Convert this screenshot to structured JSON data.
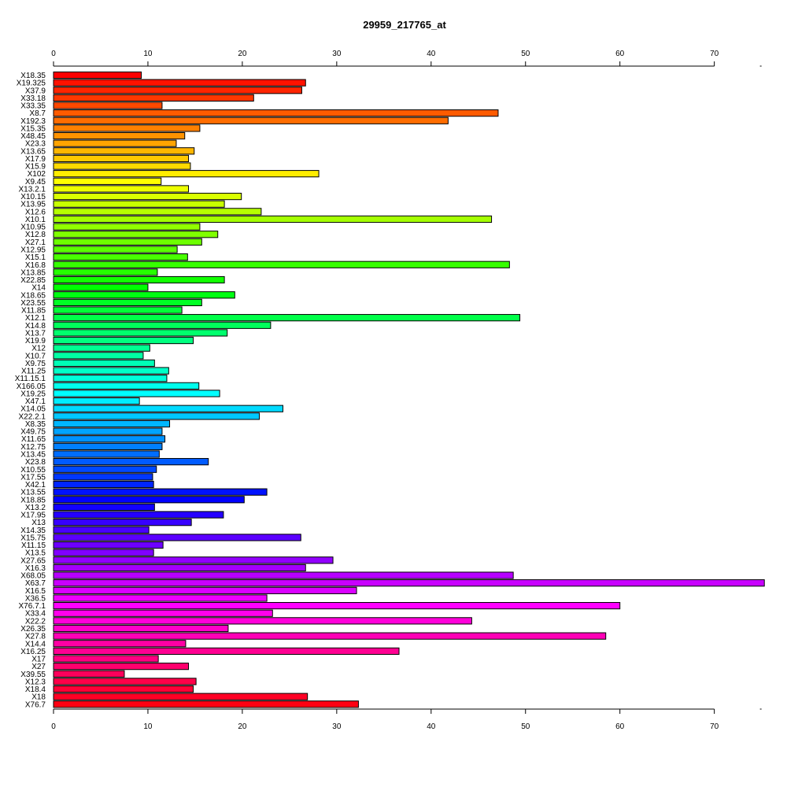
{
  "chart_data": {
    "type": "bar",
    "orientation": "horizontal",
    "title": "29959_217765_at",
    "xlabel": "",
    "ylabel": "",
    "xlim": [
      0,
      75
    ],
    "ticks": [
      0,
      10,
      20,
      30,
      40,
      50,
      60,
      70
    ],
    "tick_labels": [
      "0",
      "10",
      "20",
      "30",
      "40",
      "50",
      "60",
      "70"
    ],
    "grid": false,
    "legend": "none",
    "colors": "rainbow (red → magenta → blue → cyan → green → yellow → orange → red)",
    "categories": [
      "X18.35",
      "X19.325",
      "X37.9",
      "X33.18",
      "X33.35",
      "X8.7",
      "X192.3",
      "X15.35",
      "X48.45",
      "X23.3",
      "X13.65",
      "X17.9",
      "X15.9",
      "X102",
      "X9.45",
      "X13.2.1",
      "X10.15",
      "X13.95",
      "X12.6",
      "X10.1",
      "X10.95",
      "X12.8",
      "X27.1",
      "X12.95",
      "X15.1",
      "X16.8",
      "X13.85",
      "X22.85",
      "X14",
      "X18.65",
      "X23.55",
      "X11.85",
      "X12.1",
      "X14.8",
      "X13.7",
      "X19.9",
      "X12",
      "X10.7",
      "X9.75",
      "X11.25",
      "X11.15.1",
      "X166.05",
      "X19.25",
      "X47.1",
      "X14.05",
      "X22.2.1",
      "X8.35",
      "X49.75",
      "X11.65",
      "X12.75",
      "X13.45",
      "X23.8",
      "X10.55",
      "X17.55",
      "X42.1",
      "X13.55",
      "X18.85",
      "X13.2",
      "X17.95",
      "X13",
      "X14.35",
      "X15.75",
      "X11.15",
      "X13.5",
      "X27.65",
      "X16.3",
      "X68.05",
      "X63.7",
      "X16.5",
      "X36.5",
      "X76.7.1",
      "X33.4",
      "X22.2",
      "X26.35",
      "X27.8",
      "X14.4",
      "X16.25",
      "X17",
      "X27",
      "X39.55",
      "X12.3",
      "X18.4",
      "X18",
      "X76.7"
    ],
    "values": [
      9.3,
      26.7,
      26.3,
      21.2,
      11.5,
      47.1,
      41.8,
      15.5,
      13.9,
      13.0,
      14.9,
      14.3,
      14.5,
      28.1,
      11.4,
      14.3,
      19.9,
      18.1,
      22.0,
      46.4,
      15.5,
      17.4,
      15.7,
      13.1,
      14.2,
      48.3,
      11.0,
      18.1,
      10.0,
      19.2,
      15.7,
      13.6,
      49.4,
      23.0,
      18.4,
      14.8,
      10.2,
      9.5,
      10.7,
      12.2,
      12.0,
      15.4,
      17.6,
      9.1,
      24.3,
      21.8,
      12.3,
      11.5,
      11.8,
      11.5,
      11.2,
      16.4,
      10.9,
      10.5,
      10.6,
      22.6,
      20.2,
      10.7,
      18.0,
      14.6,
      10.1,
      26.2,
      11.6,
      10.6,
      29.6,
      26.7,
      48.7,
      75.3,
      32.1,
      22.6,
      60.0,
      23.2,
      44.3,
      18.5,
      58.5,
      14.0,
      36.6,
      11.1,
      14.3,
      7.5,
      15.1,
      14.8,
      26.9,
      32.3
    ]
  }
}
